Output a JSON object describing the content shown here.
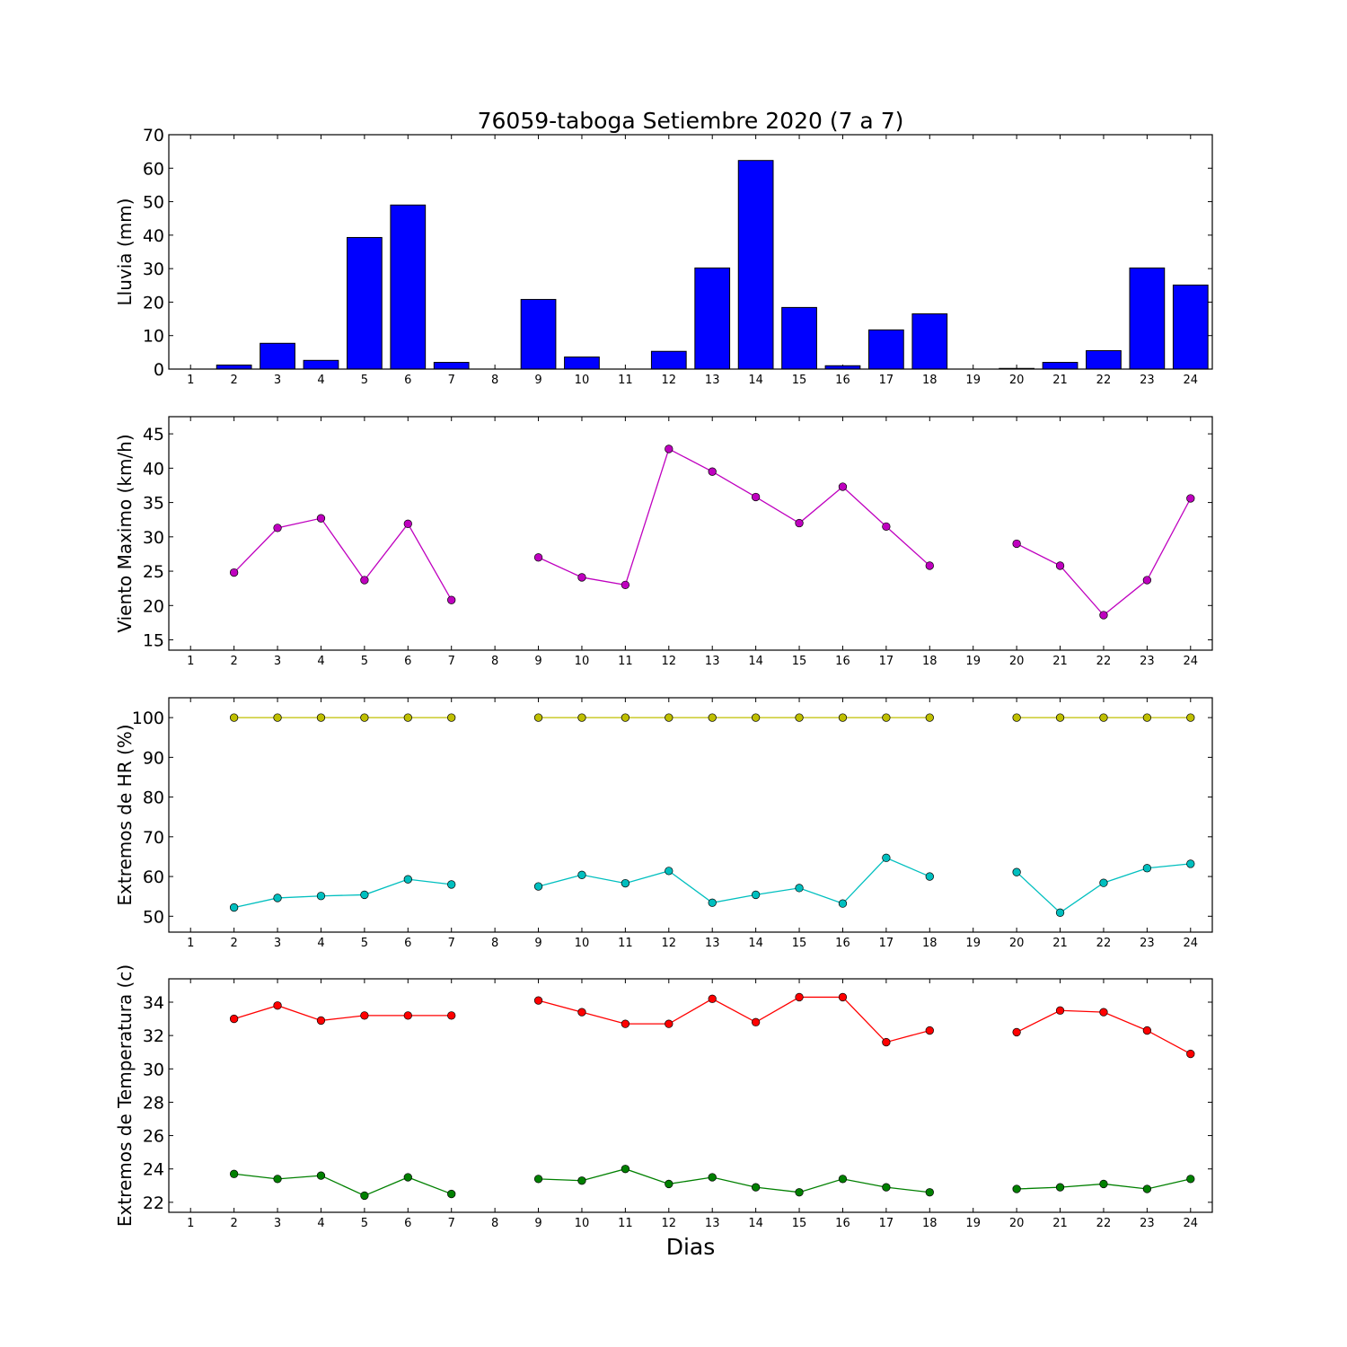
{
  "figure": {
    "title": "76059-taboga Setiembre 2020  (7 a 7)",
    "xlabel": "Dias"
  },
  "chart_data": [
    {
      "type": "bar",
      "ylabel": "Lluvia (mm)",
      "xlim": [
        0.5,
        24.5
      ],
      "ylim": [
        0,
        70
      ],
      "yticks": [
        0,
        10,
        20,
        30,
        40,
        50,
        60,
        70
      ],
      "categories": [
        1,
        2,
        3,
        4,
        5,
        6,
        7,
        8,
        9,
        10,
        11,
        12,
        13,
        14,
        15,
        16,
        17,
        18,
        19,
        20,
        21,
        22,
        23,
        24
      ],
      "series": [
        {
          "color": "#0000ff",
          "values": [
            0,
            1.2,
            7.7,
            2.6,
            39.3,
            49.0,
            2.0,
            0,
            20.8,
            3.6,
            0,
            5.3,
            30.2,
            62.3,
            18.4,
            1.0,
            11.7,
            16.5,
            0,
            0.2,
            2.0,
            5.5,
            30.2,
            25.1
          ]
        }
      ]
    },
    {
      "type": "line",
      "ylabel": "Viento Maximo (km/h)",
      "xlim": [
        0.5,
        24.5
      ],
      "ylim": [
        13.5,
        47.5
      ],
      "yticks": [
        15,
        20,
        25,
        30,
        35,
        40,
        45
      ],
      "x": [
        1,
        2,
        3,
        4,
        5,
        6,
        7,
        8,
        9,
        10,
        11,
        12,
        13,
        14,
        15,
        16,
        17,
        18,
        19,
        20,
        21,
        22,
        23,
        24
      ],
      "series": [
        {
          "color": "#bf00bf",
          "values": [
            null,
            24.8,
            31.3,
            32.7,
            23.7,
            31.9,
            20.8,
            null,
            27.0,
            24.1,
            23.0,
            42.8,
            39.5,
            35.8,
            32.0,
            37.3,
            31.5,
            25.8,
            null,
            29.0,
            25.8,
            18.6,
            23.7,
            35.6
          ]
        }
      ]
    },
    {
      "type": "line",
      "ylabel": "Extremos de HR (%)",
      "xlim": [
        0.5,
        24.5
      ],
      "ylim": [
        46,
        105
      ],
      "yticks": [
        50,
        60,
        70,
        80,
        90,
        100
      ],
      "x": [
        1,
        2,
        3,
        4,
        5,
        6,
        7,
        8,
        9,
        10,
        11,
        12,
        13,
        14,
        15,
        16,
        17,
        18,
        19,
        20,
        21,
        22,
        23,
        24
      ],
      "series": [
        {
          "color": "#bfbf00",
          "values": [
            null,
            100,
            100,
            100,
            100,
            100,
            100,
            null,
            100,
            100,
            100,
            100,
            100,
            100,
            100,
            100,
            100,
            100,
            null,
            100,
            100,
            100,
            100,
            100
          ]
        },
        {
          "color": "#00bfbf",
          "values": [
            null,
            52.2,
            54.6,
            55.1,
            55.4,
            59.3,
            58.0,
            null,
            57.5,
            60.4,
            58.3,
            61.4,
            53.4,
            55.4,
            57.1,
            53.2,
            64.7,
            60.0,
            null,
            61.1,
            50.9,
            58.4,
            62.1,
            63.2
          ]
        }
      ]
    },
    {
      "type": "line",
      "ylabel": "Extremos de Temperatura (c)",
      "xlim": [
        0.5,
        24.5
      ],
      "ylim": [
        21.4,
        35.4
      ],
      "yticks": [
        22,
        24,
        26,
        28,
        30,
        32,
        34
      ],
      "x": [
        1,
        2,
        3,
        4,
        5,
        6,
        7,
        8,
        9,
        10,
        11,
        12,
        13,
        14,
        15,
        16,
        17,
        18,
        19,
        20,
        21,
        22,
        23,
        24
      ],
      "series": [
        {
          "color": "#ff0000",
          "values": [
            null,
            33.0,
            33.8,
            32.9,
            33.2,
            33.2,
            33.2,
            null,
            34.1,
            33.4,
            32.7,
            32.7,
            34.2,
            32.8,
            34.3,
            34.3,
            31.6,
            32.3,
            null,
            32.2,
            33.5,
            33.4,
            32.3,
            30.9
          ]
        },
        {
          "color": "#008000",
          "values": [
            null,
            23.7,
            23.4,
            23.6,
            22.4,
            23.5,
            22.5,
            null,
            23.4,
            23.3,
            24.0,
            23.1,
            23.5,
            22.9,
            22.6,
            23.4,
            22.9,
            22.6,
            null,
            22.8,
            22.9,
            23.1,
            22.8,
            23.4
          ]
        }
      ]
    }
  ]
}
